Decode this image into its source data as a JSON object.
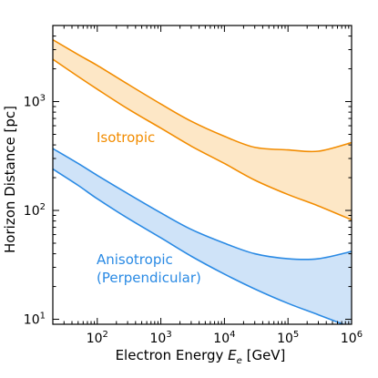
{
  "chart_data": {
    "type": "area",
    "x_scale": "log",
    "y_scale": "log",
    "xlim": [
      20,
      1000000
    ],
    "ylim": [
      9,
      5000
    ],
    "xlabel": "Electron Energy",
    "xlabel_symbol": "E",
    "xlabel_subscript": "e",
    "xlabel_unit": "[GeV]",
    "ylabel": "Horizon Distance [pc]",
    "x_ticks": [
      {
        "value": 100,
        "base": "10",
        "exp": "2"
      },
      {
        "value": 1000,
        "base": "10",
        "exp": "3"
      },
      {
        "value": 10000,
        "base": "10",
        "exp": "4"
      },
      {
        "value": 100000,
        "base": "10",
        "exp": "5"
      },
      {
        "value": 1000000,
        "base": "10",
        "exp": "6"
      }
    ],
    "y_ticks": [
      {
        "value": 10,
        "base": "10",
        "exp": "1"
      },
      {
        "value": 100,
        "base": "10",
        "exp": "2"
      },
      {
        "value": 1000,
        "base": "10",
        "exp": "3"
      }
    ],
    "series": [
      {
        "name": "Isotropic",
        "color": "#f28c00",
        "fill": "#fde7c6",
        "x": [
          20,
          50,
          100,
          300,
          1000,
          3000,
          10000,
          30000,
          100000,
          300000,
          1000000
        ],
        "upper": [
          3700,
          2700,
          2150,
          1450,
          950,
          660,
          480,
          380,
          360,
          350,
          420
        ],
        "lower": [
          2450,
          1700,
          1300,
          860,
          570,
          390,
          270,
          190,
          140,
          110,
          82
        ]
      },
      {
        "name": "Anisotropic (Perpendicular)",
        "label_lines": [
          "Anisotropic",
          "(Perpendicular)"
        ],
        "color": "#2a8ae4",
        "fill": "#cfe3f8",
        "x": [
          20,
          50,
          100,
          300,
          1000,
          3000,
          10000,
          30000,
          100000,
          300000,
          1000000
        ],
        "upper": [
          370,
          270,
          210,
          143,
          95,
          67,
          50,
          40,
          36,
          36,
          42
        ],
        "lower": [
          240,
          170,
          128,
          85,
          56,
          38,
          26,
          19,
          14,
          11,
          8.4
        ]
      }
    ]
  }
}
